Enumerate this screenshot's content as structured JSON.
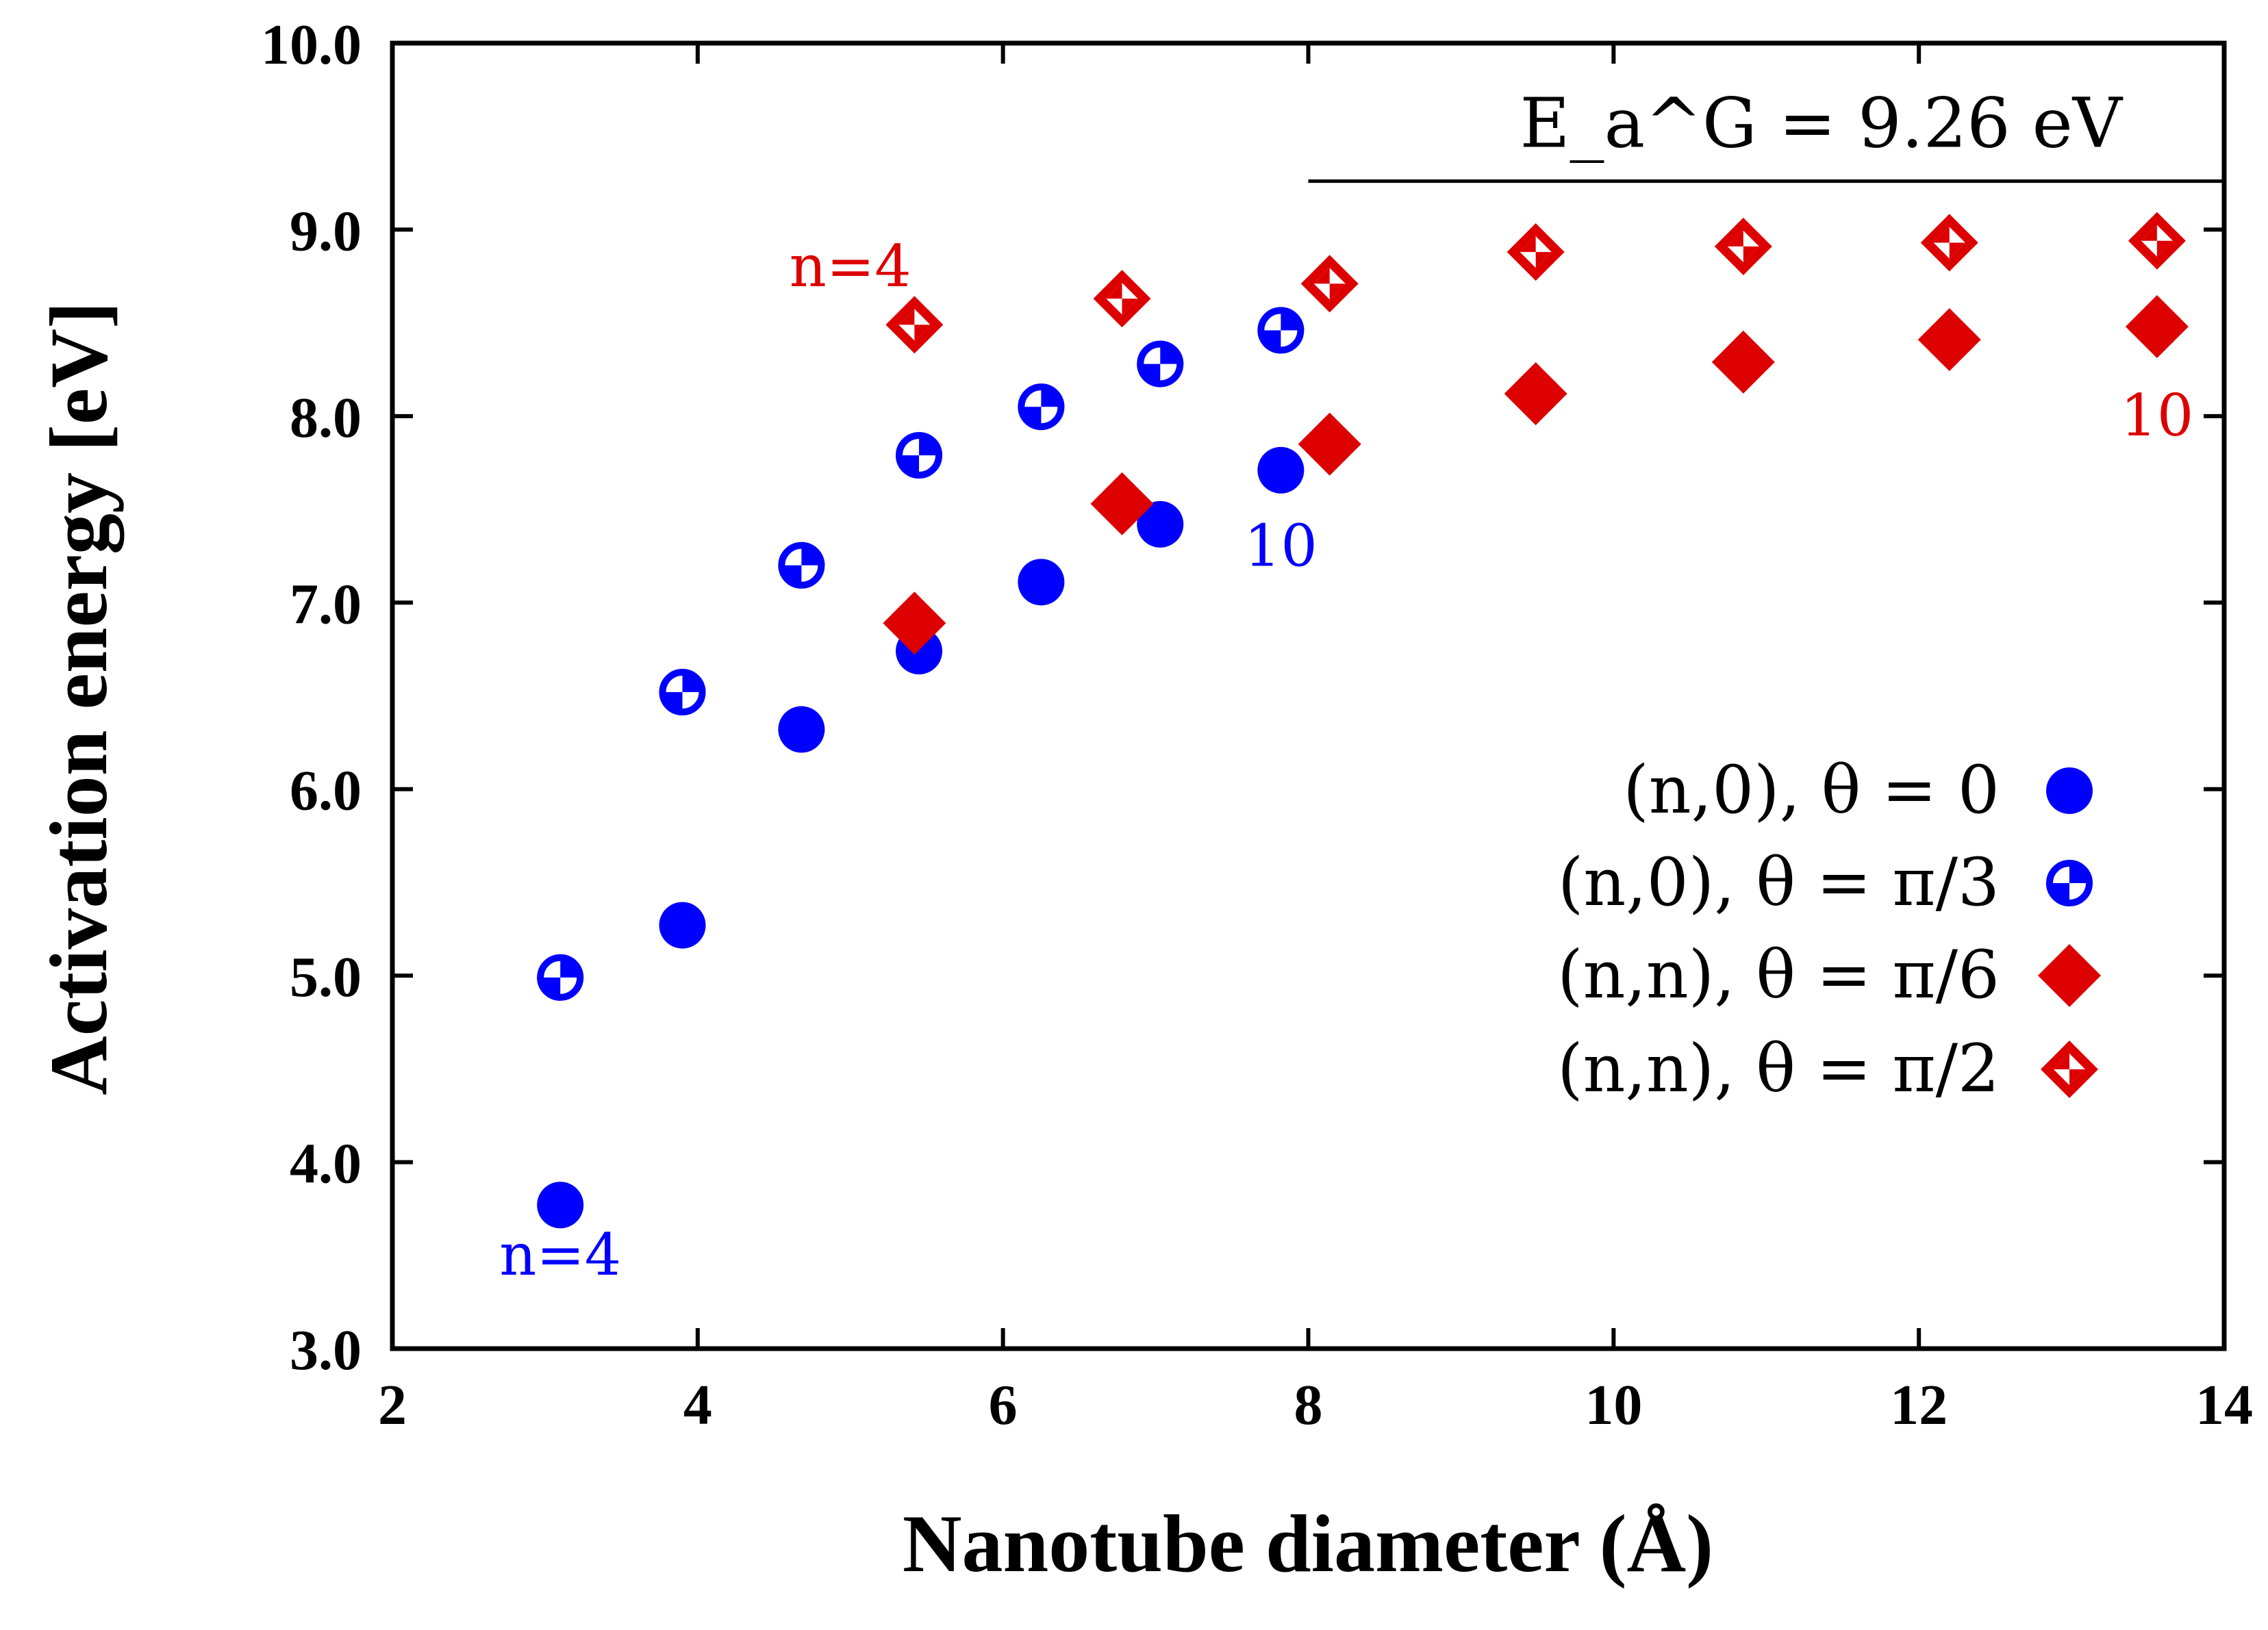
{
  "chart_data": {
    "type": "scatter",
    "xlabel": "Nanotube diameter (Å)",
    "ylabel": "Activation energy [eV]",
    "xlim": [
      2,
      14
    ],
    "ylim": [
      3.0,
      10.0
    ],
    "xticks": [
      "2",
      "4",
      "6",
      "8",
      "10",
      "12",
      "14"
    ],
    "yticks": [
      "3.0",
      "4.0",
      "5.0",
      "6.0",
      "7.0",
      "8.0",
      "9.0",
      "10.0"
    ],
    "colors": {
      "blue": "#0000ff",
      "red": "#dd0000",
      "axis": "#000000"
    },
    "series": [
      {
        "name": "(n,0), θ = 0",
        "marker": "filled-circle",
        "x": [
          3.1,
          3.9,
          4.68,
          5.45,
          6.25,
          7.03,
          7.82
        ],
        "y": [
          3.77,
          5.27,
          6.32,
          6.74,
          7.11,
          7.42,
          7.71
        ]
      },
      {
        "name": "(n,0), θ = π/3",
        "marker": "half-circle",
        "x": [
          3.1,
          3.9,
          4.68,
          5.45,
          6.25,
          7.03,
          7.82
        ],
        "y": [
          4.99,
          6.52,
          7.2,
          7.79,
          8.05,
          8.28,
          8.46
        ]
      },
      {
        "name": "(n,n), θ = π/6",
        "marker": "filled-diamond",
        "x": [
          5.42,
          6.78,
          8.14,
          9.49,
          10.85,
          12.2,
          13.56
        ],
        "y": [
          6.89,
          7.53,
          7.85,
          8.12,
          8.29,
          8.41,
          8.48
        ]
      },
      {
        "name": "(n,n), θ = π/2",
        "marker": "half-diamond",
        "x": [
          5.42,
          6.78,
          8.14,
          9.49,
          10.85,
          12.2,
          13.56
        ],
        "y": [
          8.49,
          8.63,
          8.71,
          8.88,
          8.91,
          8.93,
          8.94
        ]
      }
    ],
    "reference_line": {
      "y": 9.26,
      "x_start": 8.0,
      "x_end": 14.0,
      "label": "E_a^G = 9.26 eV"
    },
    "annotations": [
      {
        "text": "n=4",
        "x": 3.1,
        "y": 3.5,
        "color": "blue"
      },
      {
        "text": "10",
        "x": 7.82,
        "y": 7.3,
        "color": "blue"
      },
      {
        "text": "n=4",
        "x": 5.0,
        "y": 8.8,
        "color": "red"
      },
      {
        "text": "10",
        "x": 13.56,
        "y": 8.0,
        "color": "red"
      }
    ],
    "legend_position": "lower-right"
  }
}
